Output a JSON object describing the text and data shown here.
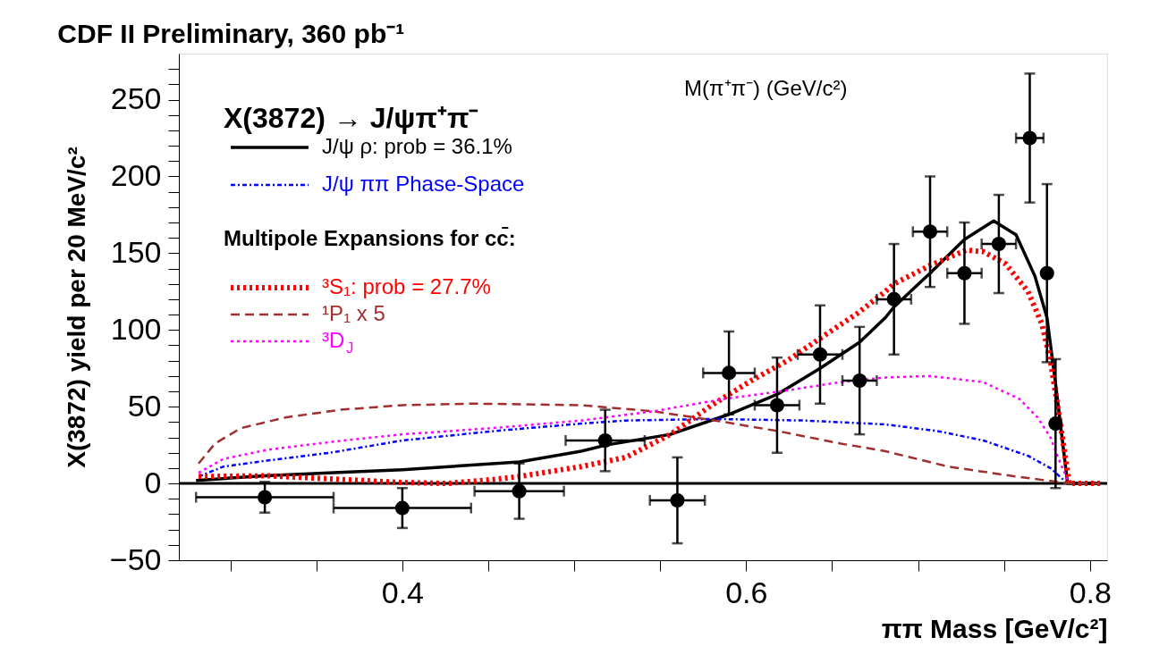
{
  "chart_data": {
    "type": "line",
    "title": "CDF II Preliminary, 360 pb⁻¹",
    "xlabel": "ππ Mass [GeV/c²]",
    "ylabel": "X(3872) yield per 20 MeV/c²",
    "legend_title": "X(3872) → J/ψπ⁺π⁻",
    "annotations": [
      "Multipole Expansions for cc̄:",
      "M(π⁺π⁻) (GeV/c²)"
    ],
    "xlim": [
      0.27,
      0.81
    ],
    "ylim": [
      -50,
      280
    ],
    "xticks": [
      {
        "value": 0.3,
        "label": null
      },
      {
        "value": 0.35,
        "label": null
      },
      0.4,
      {
        "value": 0.45,
        "label": null
      },
      {
        "value": 0.5,
        "label": null
      },
      {
        "value": 0.55,
        "label": null
      },
      0.6,
      {
        "value": 0.65,
        "label": null
      },
      {
        "value": 0.7,
        "label": null
      },
      {
        "value": 0.75,
        "label": null
      },
      0.8
    ],
    "yticks": [
      -50,
      {
        "value": -40,
        "label": null
      },
      {
        "value": -30,
        "label": null
      },
      {
        "value": -20,
        "label": null
      },
      {
        "value": -10,
        "label": null
      },
      0,
      {
        "value": 10,
        "label": null
      },
      {
        "value": 20,
        "label": null
      },
      {
        "value": 30,
        "label": null
      },
      {
        "value": 40,
        "label": null
      },
      50,
      {
        "value": 60,
        "label": null
      },
      {
        "value": 70,
        "label": null
      },
      {
        "value": 80,
        "label": null
      },
      {
        "value": 90,
        "label": null
      },
      100,
      {
        "value": 110,
        "label": null
      },
      {
        "value": 120,
        "label": null
      },
      {
        "value": 130,
        "label": null
      },
      {
        "value": 140,
        "label": null
      },
      150,
      {
        "value": 160,
        "label": null
      },
      {
        "value": 170,
        "label": null
      },
      {
        "value": 180,
        "label": null
      },
      {
        "value": 190,
        "label": null
      },
      200,
      {
        "value": 210,
        "label": null
      },
      {
        "value": 220,
        "label": null
      },
      {
        "value": 230,
        "label": null
      },
      {
        "value": 240,
        "label": null
      },
      250,
      {
        "value": 260,
        "label": null
      },
      {
        "value": 270,
        "label": null
      }
    ],
    "grid": false,
    "legend": "top left",
    "ref_lines": [
      {
        "axis": "y",
        "value": 0,
        "color": "#000000"
      }
    ],
    "series": [
      {
        "name": "J/ψ ρ: prob = 36.1%",
        "type": "line",
        "color": "#000000",
        "line_style": "solid",
        "x": [
          0.28,
          0.32,
          0.36,
          0.4,
          0.468,
          0.504,
          0.5185,
          0.556,
          0.59,
          0.618,
          0.643,
          0.666,
          0.681,
          0.686,
          0.707,
          0.727,
          0.744,
          0.757,
          0.768,
          0.775,
          0.78,
          0.787,
          0.806
        ],
        "values": [
          2,
          5,
          7,
          9,
          14,
          21,
          25,
          32,
          45,
          58,
          75,
          92,
          108,
          115,
          137,
          159,
          171,
          162,
          135,
          108,
          65,
          0,
          0
        ]
      },
      {
        "name": "J/ψ ππ Phase-Space",
        "type": "line",
        "color": "#0000ff",
        "line_style": "dashdot",
        "x": [
          0.2815,
          0.296,
          0.322,
          0.358,
          0.4,
          0.452,
          0.504,
          0.53,
          0.582,
          0.634,
          0.681,
          0.712,
          0.738,
          0.764,
          0.777,
          0.787
        ],
        "values": [
          4.5,
          11,
          15,
          20,
          28,
          34,
          39,
          41,
          42,
          41,
          38.5,
          34,
          28,
          18,
          10,
          0
        ]
      },
      {
        "name": "³S₁: prob = 27.7%",
        "type": "line",
        "color": "#ff0000",
        "line_style": "dotted",
        "x": [
          0.2815,
          0.322,
          0.358,
          0.4,
          0.426,
          0.452,
          0.468,
          0.504,
          0.53,
          0.556,
          0.58,
          0.603,
          0.624,
          0.645,
          0.665,
          0.681,
          0.686,
          0.707,
          0.728,
          0.738,
          0.751,
          0.764,
          0.772,
          0.777,
          0.7825,
          0.788,
          0.806
        ],
        "values": [
          4.5,
          5,
          3,
          0.6,
          0,
          2.5,
          4.5,
          11,
          17,
          32,
          51,
          67,
          80,
          96,
          111,
          125,
          130,
          142,
          152,
          151,
          143,
          125,
          104,
          80,
          41,
          0,
          0
        ]
      },
      {
        "name": "¹P₁ x 5",
        "type": "line",
        "color": "#a03030",
        "line_style": "dashed",
        "x": [
          0.2815,
          0.291,
          0.306,
          0.332,
          0.364,
          0.4,
          0.442,
          0.504,
          0.546,
          0.582,
          0.619,
          0.655,
          0.681,
          0.7175,
          0.754,
          0.777,
          0.788,
          0.806
        ],
        "values": [
          13,
          26,
          36,
          43,
          48,
          51,
          52,
          51,
          47,
          41,
          34,
          26,
          21,
          11,
          5,
          1.6,
          0,
          0
        ]
      },
      {
        "name": "³D$_{J}$",
        "type": "line",
        "color": "#ff00ff",
        "line_style": "dotted",
        "x": [
          0.2815,
          0.296,
          0.322,
          0.358,
          0.4,
          0.452,
          0.504,
          0.546,
          0.587,
          0.62,
          0.655,
          0.681,
          0.707,
          0.738,
          0.759,
          0.7695,
          0.777,
          0.7825,
          0.787
        ],
        "values": [
          7,
          16,
          22,
          27,
          32,
          36,
          41,
          47,
          55,
          60,
          66,
          69,
          70,
          66,
          55,
          43,
          30,
          14,
          2.5
        ]
      },
      {
        "type": "scatter",
        "color": "#000000",
        "marker": "circle",
        "x": [
          0.32,
          0.4,
          0.468,
          0.518,
          0.56,
          0.59,
          0.618,
          0.643,
          0.666,
          0.686,
          0.707,
          0.727,
          0.747,
          0.765,
          0.775,
          0.78
        ],
        "values": [
          -9,
          -16,
          -5,
          28,
          -11,
          72,
          51,
          84,
          67,
          120,
          164,
          137,
          156,
          225,
          137,
          39
        ],
        "errors": [
          10,
          13,
          18,
          20,
          28,
          27,
          31,
          32,
          35,
          36,
          36,
          33,
          32,
          42,
          58,
          42
        ],
        "xerrors": [
          0.04,
          0.04,
          0.026,
          0.023,
          0.016,
          0.015,
          0.013,
          0.013,
          0.01,
          0.01,
          0.01,
          0.01,
          0.01,
          0.008,
          null,
          null
        ]
      }
    ]
  }
}
